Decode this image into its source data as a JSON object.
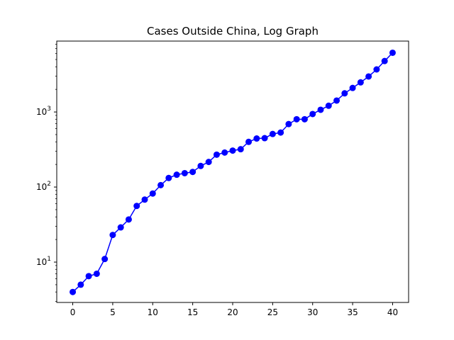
{
  "chart_data": {
    "type": "line",
    "title": "Cases Outside China, Log Graph",
    "xlabel": "",
    "ylabel": "",
    "yscale": "log",
    "xlim": [
      -2,
      42
    ],
    "ylim": [
      2.9,
      8800
    ],
    "grid": false,
    "x_ticks": [
      0,
      5,
      10,
      15,
      20,
      25,
      30,
      35,
      40
    ],
    "y_major_ticks": [
      {
        "value": 10,
        "base": "10",
        "exp": "1"
      },
      {
        "value": 100,
        "base": "10",
        "exp": "2"
      },
      {
        "value": 1000,
        "base": "10",
        "exp": "3"
      }
    ],
    "series": [
      {
        "color": "#0000ff",
        "marker": "circle",
        "x": [
          0,
          1,
          2,
          3,
          4,
          5,
          6,
          7,
          8,
          9,
          10,
          11,
          12,
          13,
          14,
          15,
          16,
          17,
          18,
          19,
          20,
          21,
          22,
          23,
          24,
          25,
          26,
          27,
          28,
          29,
          30,
          31,
          32,
          33,
          34,
          35,
          36,
          37,
          38,
          39,
          40
        ],
        "y": [
          4,
          5,
          6.5,
          7,
          11,
          23,
          29,
          37,
          56,
          68,
          82,
          106,
          132,
          146,
          153,
          159,
          191,
          216,
          270,
          288,
          306,
          319,
          400,
          443,
          448,
          509,
          532,
          690,
          800,
          800,
          940,
          1070,
          1210,
          1420,
          1770,
          2090,
          2480,
          2970,
          3690,
          4770,
          6150
        ]
      }
    ]
  }
}
